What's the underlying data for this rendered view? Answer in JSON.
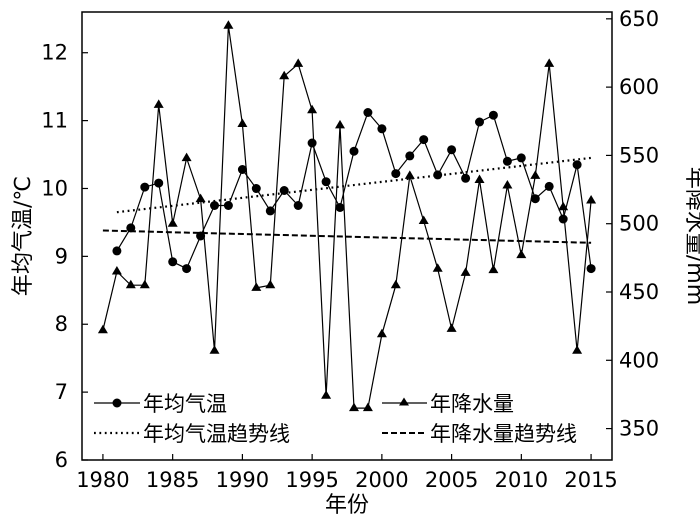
{
  "chart_data": {
    "type": "line",
    "xlabel": "年份",
    "ylabel_left": "年均气温/℃",
    "ylabel_right": "年降水量/mm",
    "x_ticks": [
      1980,
      1985,
      1990,
      1995,
      2000,
      2005,
      2010,
      2015
    ],
    "xlim": [
      1978.5,
      2016.5
    ],
    "y_left_ticks": [
      6,
      7,
      8,
      9,
      10,
      11,
      12
    ],
    "y_left_lim": [
      6,
      12.6
    ],
    "y_right_ticks": [
      350,
      400,
      450,
      500,
      550,
      600,
      650
    ],
    "y_right_lim": [
      327,
      655
    ],
    "legend_position": "bottom, inside plot",
    "series": [
      {
        "name": "年均气温",
        "axis": "left",
        "marker": "circle",
        "line": "solid",
        "x": [
          1981,
          1982,
          1983,
          1984,
          1985,
          1986,
          1987,
          1988,
          1989,
          1990,
          1991,
          1992,
          1993,
          1994,
          1995,
          1996,
          1997,
          1998,
          1999,
          2000,
          2001,
          2002,
          2003,
          2004,
          2005,
          2006,
          2007,
          2008,
          2009,
          2010,
          2011,
          2012,
          2013,
          2014,
          2015
        ],
        "y": [
          9.08,
          9.42,
          10.02,
          10.08,
          8.92,
          8.82,
          9.3,
          9.75,
          9.75,
          10.28,
          10.0,
          9.67,
          9.97,
          9.75,
          10.67,
          10.1,
          9.72,
          10.55,
          11.12,
          10.88,
          10.22,
          10.48,
          10.72,
          10.2,
          10.57,
          10.15,
          10.98,
          11.08,
          10.4,
          10.45,
          9.85,
          10.03,
          9.55,
          10.35,
          8.82
        ]
      },
      {
        "name": "年降水量",
        "axis": "right",
        "marker": "triangle",
        "line": "solid",
        "x": [
          1980,
          1981,
          1982,
          1983,
          1984,
          1985,
          1986,
          1987,
          1988,
          1989,
          1990,
          1991,
          1992,
          1993,
          1994,
          1995,
          1996,
          1997,
          1998,
          1999,
          2000,
          2001,
          2002,
          2003,
          2004,
          2005,
          2006,
          2007,
          2008,
          2009,
          2010,
          2011,
          2012,
          2013,
          2014,
          2015
        ],
        "y": [
          422,
          465,
          455,
          455,
          587,
          500,
          548,
          518,
          407,
          645,
          573,
          453,
          455,
          608,
          617,
          583,
          374,
          572,
          365,
          365,
          419,
          455,
          535,
          502,
          467,
          423,
          464,
          532,
          466,
          528,
          477,
          535,
          617,
          512,
          407,
          517
        ]
      },
      {
        "name": "年均气温趋势线",
        "axis": "left",
        "line": "dotted",
        "x": [
          1981,
          2015
        ],
        "y": [
          9.65,
          10.45
        ]
      },
      {
        "name": "年降水量趋势线",
        "axis": "right",
        "line": "dashed",
        "x": [
          1980,
          2015
        ],
        "y": [
          495,
          486
        ]
      }
    ]
  }
}
